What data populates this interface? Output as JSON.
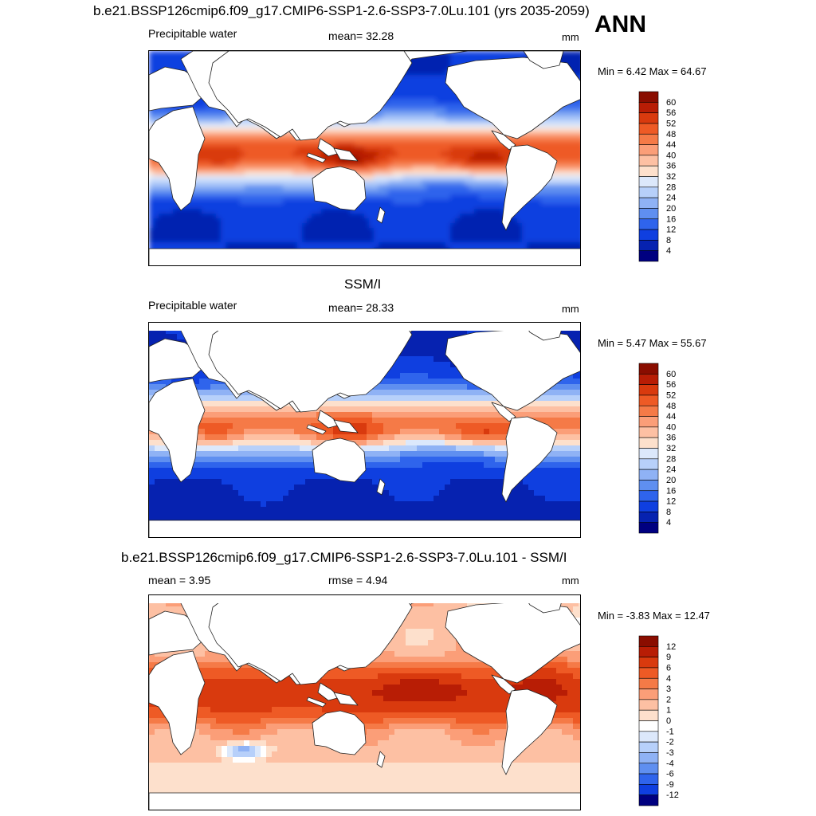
{
  "figure": {
    "title": "b.e21.BSSP126cmip6.f09_g17.CMIP6-SSP1-2.6-SSP3-7.0Lu.101 (yrs 2035-2059)",
    "season": "ANN"
  },
  "panels": [
    {
      "id": "model",
      "heading": "",
      "variable": "Precipitable water",
      "stat_text": "mean=  32.28",
      "units": "mm",
      "minmax_text": "Min =   6.42 Max =  64.67",
      "colorbar": {
        "levels": [
          "60",
          "56",
          "52",
          "48",
          "44",
          "40",
          "36",
          "32",
          "28",
          "24",
          "20",
          "16",
          "12",
          "8",
          "4"
        ],
        "colors": [
          "#8a0d00",
          "#b81d05",
          "#d93a0e",
          "#ee5a25",
          "#f57a47",
          "#fb9e78",
          "#fdc0a3",
          "#fde0cc",
          "#dce8fb",
          "#b7d0fa",
          "#8fb2f5",
          "#5f8ff0",
          "#2f64ec",
          "#0f3fe0",
          "#0622b0",
          "#000080"
        ]
      }
    },
    {
      "id": "obs",
      "heading": "SSM/I",
      "variable": "Precipitable water",
      "stat_text": "mean=  28.33",
      "units": "mm",
      "minmax_text": "Min =   5.47 Max =  55.67",
      "colorbar": {
        "levels": [
          "60",
          "56",
          "52",
          "48",
          "44",
          "40",
          "36",
          "32",
          "28",
          "24",
          "20",
          "16",
          "12",
          "8",
          "4"
        ],
        "colors": [
          "#8a0d00",
          "#b81d05",
          "#d93a0e",
          "#ee5a25",
          "#f57a47",
          "#fb9e78",
          "#fdc0a3",
          "#fde0cc",
          "#dce8fb",
          "#b7d0fa",
          "#8fb2f5",
          "#5f8ff0",
          "#2f64ec",
          "#0f3fe0",
          "#0622b0",
          "#000080"
        ]
      }
    },
    {
      "id": "diff",
      "heading": "b.e21.BSSP126cmip6.f09_g17.CMIP6-SSP1-2.6-SSP3-7.0Lu.101 - SSM/I",
      "variable": "",
      "stat_text": "mean =   3.95",
      "rmse_text": "rmse =   4.94",
      "units": "mm",
      "minmax_text": "Min =  -3.83 Max =  12.47",
      "colorbar": {
        "levels": [
          "12",
          "9",
          "6",
          "4",
          "3",
          "2",
          "1",
          "0",
          "-1",
          "-2",
          "-3",
          "-4",
          "-6",
          "-9",
          "-12"
        ],
        "colors": [
          "#8a0d00",
          "#b81d05",
          "#d93a0e",
          "#ee5a25",
          "#f57a47",
          "#fb9e78",
          "#fdc0a3",
          "#fde0cc",
          "#ffffff",
          "#dce8fb",
          "#b7d0fa",
          "#8fb2f5",
          "#5f8ff0",
          "#2f64ec",
          "#0f3fe0",
          "#000080"
        ]
      }
    }
  ],
  "chart_data": [
    {
      "type": "heatmap",
      "title": "Precipitable water",
      "units": "mm",
      "mean": 32.28,
      "min": 6.42,
      "max": 64.67,
      "contour_levels": [
        4,
        8,
        12,
        16,
        20,
        24,
        28,
        32,
        36,
        40,
        44,
        48,
        52,
        56,
        60
      ]
    },
    {
      "type": "heatmap",
      "title": "Precipitable water",
      "units": "mm",
      "mean": 28.33,
      "min": 5.47,
      "max": 55.67,
      "contour_levels": [
        4,
        8,
        12,
        16,
        20,
        24,
        28,
        32,
        36,
        40,
        44,
        48,
        52,
        56,
        60
      ]
    },
    {
      "type": "heatmap",
      "title": "b.e21.BSSP126cmip6.f09_g17.CMIP6-SSP1-2.6-SSP3-7.0Lu.101 - SSM/I",
      "units": "mm",
      "mean": 3.95,
      "rmse": 4.94,
      "min": -3.83,
      "max": 12.47,
      "contour_levels": [
        -12,
        -9,
        -6,
        -4,
        -3,
        -2,
        -1,
        0,
        1,
        2,
        3,
        4,
        6,
        9,
        12
      ]
    }
  ]
}
